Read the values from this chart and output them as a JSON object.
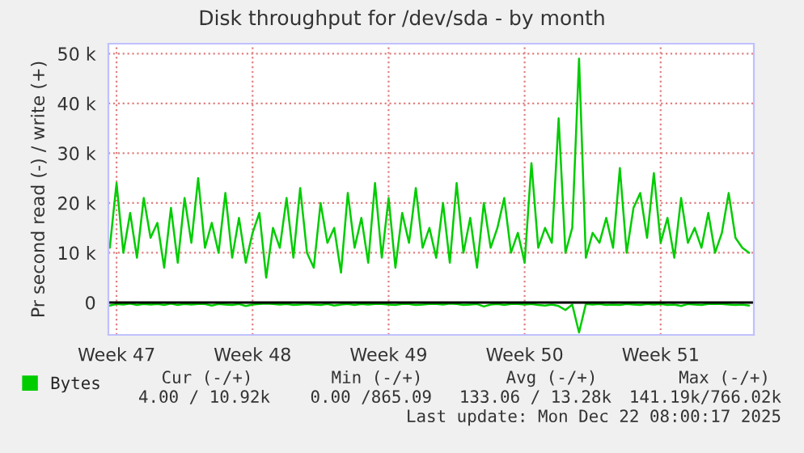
{
  "chart_data": {
    "type": "line",
    "title": "Disk throughput for /dev/sda - by month",
    "ylabel": "Pr second read (-) / write (+)",
    "ylim": [
      -6500,
      52000
    ],
    "categories": [
      null,
      "Week 47",
      null,
      null,
      null,
      null,
      null,
      null,
      null,
      null,
      null,
      null,
      null,
      null,
      null,
      null,
      null,
      null,
      null,
      null,
      null,
      "Week 48",
      null,
      null,
      null,
      null,
      null,
      null,
      null,
      null,
      null,
      null,
      null,
      null,
      null,
      null,
      null,
      null,
      null,
      null,
      null,
      "Week 49",
      null,
      null,
      null,
      null,
      null,
      null,
      null,
      null,
      null,
      null,
      null,
      null,
      null,
      null,
      null,
      null,
      null,
      null,
      null,
      "Week 50",
      null,
      null,
      null,
      null,
      null,
      null,
      null,
      null,
      null,
      null,
      null,
      null,
      null,
      null,
      null,
      null,
      null,
      null,
      null,
      "Week 51",
      null,
      null,
      null,
      null,
      null,
      null,
      null,
      null,
      null,
      null,
      null,
      null,
      null
    ],
    "yticks": [
      {
        "value": 0,
        "label": "0"
      },
      {
        "value": 10000,
        "label": "10 k"
      },
      {
        "value": 20000,
        "label": "20 k"
      },
      {
        "value": 30000,
        "label": "30 k"
      },
      {
        "value": 40000,
        "label": "40 k"
      },
      {
        "value": 50000,
        "label": "50 k"
      }
    ],
    "grid": true,
    "legend": "bottom left",
    "series": [
      {
        "name": "Bytes",
        "color": "#00cc00",
        "values": [
          11000,
          24000,
          10000,
          18000,
          9000,
          21000,
          13000,
          16000,
          7000,
          19000,
          8000,
          21000,
          12000,
          25000,
          11000,
          16000,
          10000,
          22000,
          9000,
          17000,
          8000,
          14000,
          18000,
          5000,
          15000,
          11000,
          21000,
          9000,
          23000,
          10000,
          7000,
          20000,
          12000,
          15000,
          6000,
          22000,
          11000,
          17000,
          8000,
          24000,
          9000,
          21000,
          7000,
          18000,
          12000,
          23000,
          11000,
          15000,
          9000,
          20000,
          8000,
          24000,
          10000,
          17000,
          7000,
          20000,
          11000,
          15000,
          21000,
          10000,
          14000,
          8000,
          28000,
          11000,
          15000,
          12000,
          37000,
          10000,
          15000,
          49000,
          9000,
          14000,
          12000,
          17000,
          11000,
          27000,
          10000,
          19000,
          22000,
          13000,
          26000,
          12000,
          17000,
          9000,
          21000,
          12000,
          15000,
          11000,
          18000,
          10000,
          14000,
          22000,
          13000,
          11000,
          10000
        ]
      },
      {
        "color": "#00cc00",
        "values": [
          -600,
          -300,
          -400,
          -200,
          -500,
          -300,
          -400,
          -300,
          -500,
          -200,
          -500,
          -300,
          -400,
          -300,
          -300,
          -600,
          -300,
          -400,
          -500,
          -300,
          -700,
          -400,
          -300,
          -200,
          -300,
          -400,
          -300,
          -500,
          -400,
          -300,
          -400,
          -500,
          -300,
          -600,
          -400,
          -300,
          -500,
          -300,
          -400,
          -300,
          -300,
          -400,
          -500,
          -300,
          -300,
          -500,
          -400,
          -300,
          -300,
          -400,
          -200,
          -300,
          -500,
          -400,
          -300,
          -800,
          -400,
          -300,
          -500,
          -300,
          -300,
          -400,
          -300,
          -500,
          -600,
          -400,
          -700,
          -1500,
          -400,
          -6000,
          -300,
          -400,
          -300,
          -500,
          -400,
          -500,
          -300,
          -400,
          -500,
          -300,
          -400,
          -300,
          -500,
          -400,
          -700,
          -300,
          -400,
          -500,
          -300,
          -300,
          -300,
          -400,
          -500,
          -400,
          -600
        ]
      }
    ],
    "ref_lines": [
      {
        "axis": "y",
        "value": 0,
        "color": "#000000"
      }
    ],
    "annotations": [
      "Cur (-/+)",
      "Min (-/+)",
      "Avg (-/+)",
      "Max (-/+)",
      "4.00 / 10.92k",
      "0.00 /865.09",
      "133.06 / 13.28k",
      "141.19k/766.02k",
      "Last update: Mon Dec 22 08:00:17 2025"
    ]
  }
}
